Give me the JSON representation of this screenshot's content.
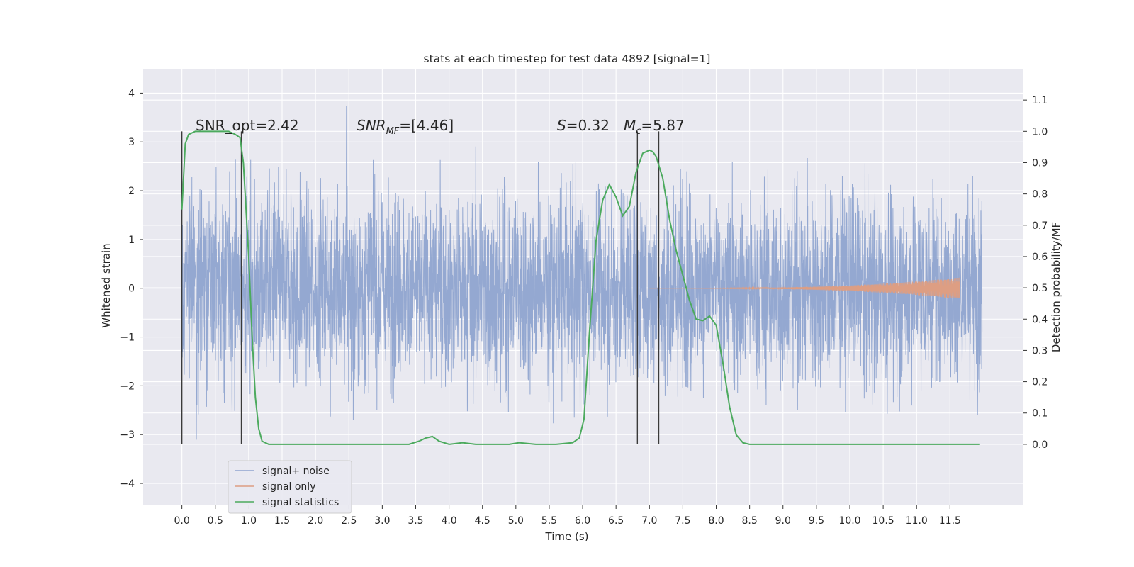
{
  "chart_data": {
    "type": "line",
    "title": "stats at each timestep for test data 4892 [signal=1]",
    "xlabel": "Time (s)",
    "ylabel_left": "Whitened strain",
    "ylabel_right": "Detection probability/MF",
    "xlim": [
      -0.58,
      12.6
    ],
    "ylim_left": [
      -4.45,
      4.5
    ],
    "ylim_right": [
      -0.195,
      1.2
    ],
    "x_ticks": [
      "0.0",
      "0.5",
      "1.0",
      "1.5",
      "2.0",
      "2.5",
      "3.0",
      "3.5",
      "4.0",
      "4.5",
      "5.0",
      "5.5",
      "6.0",
      "6.5",
      "7.0",
      "7.5",
      "8.0",
      "8.5",
      "9.0",
      "9.5",
      "10.0",
      "10.5",
      "11.0",
      "11.5"
    ],
    "y_left_ticks": [
      "4",
      "3",
      "2",
      "1",
      "0",
      "−1",
      "−2",
      "−3",
      "−4"
    ],
    "y_right_ticks": [
      "1.1",
      "1.0",
      "0.9",
      "0.8",
      "0.7",
      "0.6",
      "0.5",
      "0.4",
      "0.3",
      "0.2",
      "0.1",
      "0.0"
    ],
    "grid": true,
    "legend_position": "lower-left",
    "annotations": {
      "snr_opt": "SNR_opt=2.42",
      "snr_mf_base": "SNR",
      "snr_mf_sub": "MF",
      "snr_mf_value": "=[4.46]",
      "s_label": "S",
      "s_value": "=0.32",
      "mc_base": "M",
      "mc_sub": "c",
      "mc_value": "=5.87"
    },
    "vertical_lines_x": [
      0.0,
      0.89,
      6.82,
      7.14
    ],
    "series": [
      {
        "name": "signal+ noise",
        "color": "#8fa4cf",
        "axis": "left",
        "kind": "noisy strain",
        "x_range": [
          0.0,
          11.98
        ],
        "envelope": [
          -3.2,
          3.5
        ]
      },
      {
        "name": "signal only",
        "color": "#dd9e83",
        "axis": "left",
        "kind": "chirp",
        "x_range": [
          7.0,
          11.65
        ],
        "amplitude_end": 0.22
      },
      {
        "name": "signal statistics",
        "color": "#4caa5e",
        "axis": "right",
        "x": [
          0.0,
          0.05,
          0.1,
          0.2,
          0.3,
          0.5,
          0.7,
          0.8,
          0.87,
          0.92,
          1.0,
          1.05,
          1.1,
          1.15,
          1.2,
          1.3,
          1.5,
          2.0,
          2.5,
          3.0,
          3.4,
          3.55,
          3.65,
          3.75,
          3.85,
          4.0,
          4.2,
          4.4,
          4.7,
          4.9,
          5.05,
          5.3,
          5.6,
          5.85,
          5.95,
          6.02,
          6.1,
          6.2,
          6.3,
          6.4,
          6.5,
          6.6,
          6.7,
          6.8,
          6.9,
          7.0,
          7.05,
          7.1,
          7.2,
          7.3,
          7.4,
          7.5,
          7.6,
          7.7,
          7.8,
          7.9,
          8.0,
          8.1,
          8.2,
          8.3,
          8.4,
          8.5,
          8.7,
          9.0,
          10.0,
          11.0,
          11.95
        ],
        "y": [
          0.75,
          0.96,
          0.99,
          1.0,
          1.0,
          1.0,
          1.0,
          0.99,
          0.98,
          0.9,
          0.6,
          0.35,
          0.15,
          0.05,
          0.01,
          0.0,
          0.0,
          0.0,
          0.0,
          0.0,
          0.0,
          0.01,
          0.02,
          0.025,
          0.01,
          0.0,
          0.005,
          0.0,
          0.0,
          0.0,
          0.005,
          0.0,
          0.0,
          0.005,
          0.02,
          0.08,
          0.35,
          0.65,
          0.78,
          0.83,
          0.79,
          0.73,
          0.76,
          0.87,
          0.93,
          0.94,
          0.935,
          0.92,
          0.85,
          0.72,
          0.62,
          0.54,
          0.46,
          0.4,
          0.395,
          0.41,
          0.38,
          0.26,
          0.12,
          0.03,
          0.005,
          0.0,
          0.0,
          0.0,
          0.0,
          0.0,
          0.0
        ]
      }
    ]
  }
}
